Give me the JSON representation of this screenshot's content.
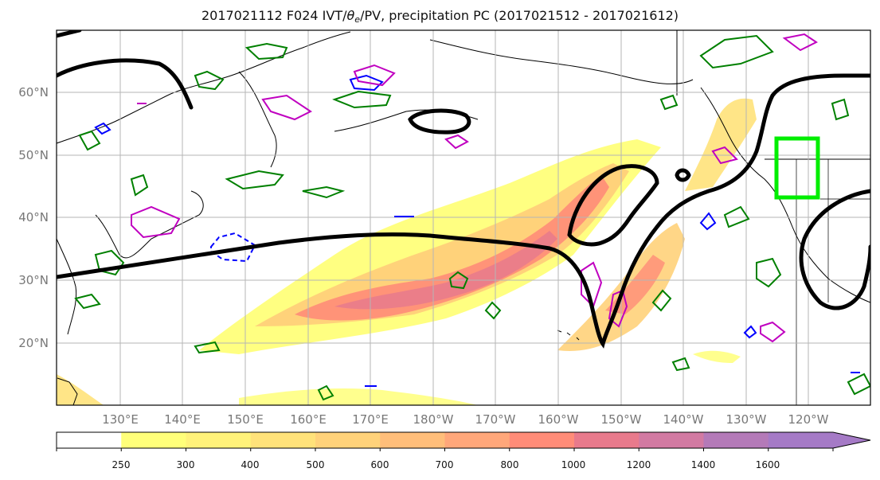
{
  "title": {
    "prefix": "2017021112 F024 IVT/",
    "theta_symbol": "θ",
    "theta_sub": "e",
    "suffix": "/PV, precipitation PC (2017021512 - 2017021612)"
  },
  "map": {
    "lat_labels": [
      "60°N",
      "50°N",
      "40°N",
      "30°N",
      "20°N"
    ],
    "lon_labels": [
      "130°E",
      "140°E",
      "150°E",
      "160°E",
      "170°E",
      "180°W",
      "170°W",
      "160°W",
      "150°W",
      "140°W",
      "130°W",
      "120°W"
    ],
    "highlight_box_color": "#00ee00",
    "pv_contour_color": "#000000",
    "theta_e_colors": [
      "#008000",
      "#0000ff",
      "#c000c0"
    ]
  },
  "colorbar": {
    "levels": [
      "250",
      "300",
      "400",
      "500",
      "600",
      "700",
      "800",
      "1000",
      "1200",
      "1400",
      "1600"
    ],
    "colors": [
      "#ffffff",
      "#ffff7a",
      "#fff27a",
      "#ffe27a",
      "#ffd27a",
      "#ffbe7a",
      "#ffa77a",
      "#ff8c78",
      "#e87a8c",
      "#d27aa2",
      "#b47ab8",
      "#a57ac6"
    ]
  }
}
